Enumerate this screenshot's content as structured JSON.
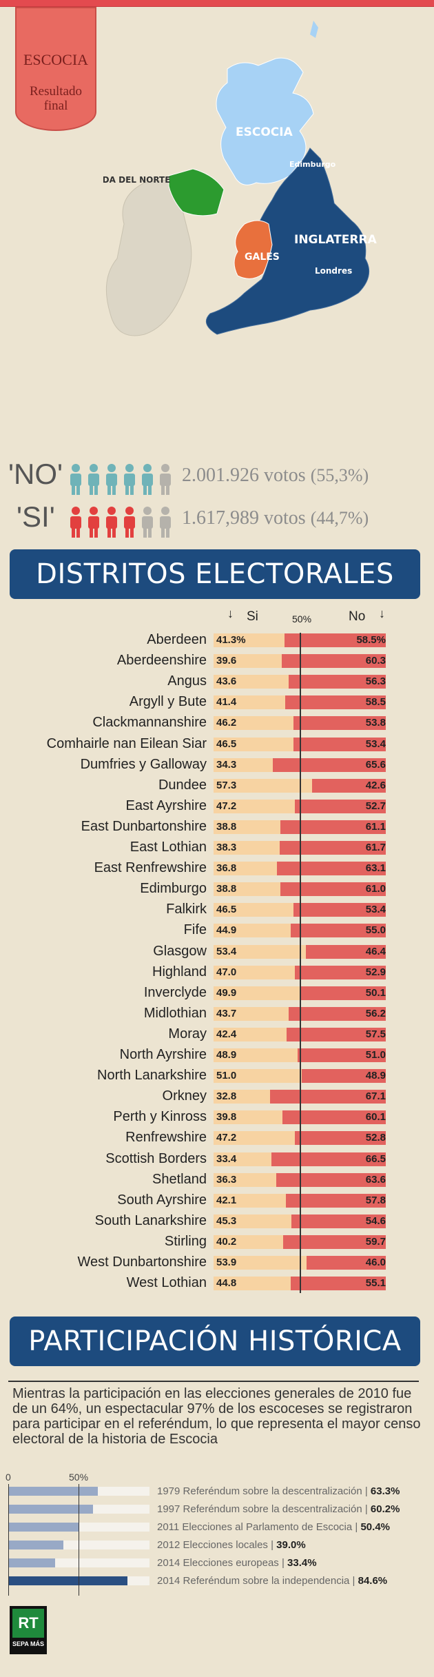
{
  "ribbon": {
    "line1": "ESCOCIA",
    "line2": "Resultado final"
  },
  "map": {
    "labels": {
      "scotland": "ESCOCIA",
      "edinburgh": "Edimburgo",
      "northern_ireland": "IRLANDA DEL NORTE",
      "england": "INGLATERRA",
      "wales": "GALES",
      "london": "Londres"
    },
    "colors": {
      "scotland": "#a7d2f5",
      "england": "#1d4b7e",
      "wales": "#e8703d",
      "northern_ireland": "#2c9b2f",
      "ireland": "#dcd6c6"
    }
  },
  "totals": {
    "no": {
      "tag": "'NO'",
      "votes": "2.001.926 votos",
      "pct": "(55,3%)",
      "color": "#6fb3b8",
      "figures_colored": 5,
      "figures_total": 6
    },
    "si": {
      "tag": "'SI'",
      "votes": "1.617,989 votos",
      "pct": "(44,7%)",
      "color": "#e2403f",
      "figures_colored": 4,
      "figures_total": 6
    }
  },
  "districts_title": "DISTRITOS ELECTORALES",
  "participation_title": "PARTICIPACIÓN HISTÓRICA",
  "intro_text": "Mientras la participación en las elecciones generales de 2010 fue de un 64%, un espectacular 97% de los escoceses se registraron para participar en el referéndum, lo que representa el mayor censo electoral de la historia de Escocia",
  "chart_data": [
    {
      "type": "bar",
      "title": "DISTRITOS ELECTORALES",
      "series_labels": {
        "si": "Si",
        "no": "No",
        "mid": "50%"
      },
      "categories": [
        "Aberdeen",
        "Aberdeenshire",
        "Angus",
        "Argyll y Bute",
        "Clackmannanshire",
        "Comhairle nan Eilean Siar",
        "Dumfries y Galloway",
        "Dundee",
        "East Ayrshire",
        "East Dunbartonshire",
        "East Lothian",
        "East Renfrewshire",
        "Edimburgo",
        "Falkirk",
        "Fife",
        "Glasgow",
        "Highland",
        "Inverclyde",
        "Midlothian",
        "Moray",
        "North Ayrshire",
        "North Lanarkshire",
        "Orkney",
        "Perth y Kinross",
        "Renfrewshire",
        "Scottish Borders",
        "Shetland",
        "South Ayrshire",
        "South Lanarkshire",
        "Stirling",
        "West Dunbartonshire",
        "West Lothian"
      ],
      "series": [
        {
          "name": "Si",
          "values": [
            41.3,
            39.6,
            43.6,
            41.4,
            46.2,
            46.5,
            34.3,
            57.3,
            47.2,
            38.8,
            38.3,
            36.8,
            38.8,
            46.5,
            44.9,
            53.4,
            47.0,
            49.9,
            43.7,
            42.4,
            48.9,
            51.0,
            32.8,
            39.8,
            47.2,
            33.4,
            36.3,
            42.1,
            45.3,
            40.2,
            53.9,
            44.8
          ],
          "display": [
            "41.3%",
            "39.6",
            "43.6",
            "41.4",
            "46.2",
            "46.5",
            "34.3",
            "57.3",
            "47.2",
            "38.8",
            "38.3",
            "36.8",
            "38.8",
            "46.5",
            "44.9",
            "53.4",
            "47.0",
            "49.9",
            "43.7",
            "42.4",
            "48.9",
            "51.0",
            "32.8",
            "39.8",
            "47.2",
            "33.4",
            "36.3",
            "42.1",
            "45.3",
            "40.2",
            "53.9",
            "44.8"
          ]
        },
        {
          "name": "No",
          "values": [
            58.5,
            60.3,
            56.3,
            58.5,
            53.8,
            53.4,
            65.6,
            42.6,
            52.7,
            61.1,
            61.7,
            63.1,
            61.0,
            53.4,
            55.0,
            46.4,
            52.9,
            50.1,
            56.2,
            57.5,
            51.0,
            48.9,
            67.1,
            60.1,
            52.8,
            66.5,
            63.6,
            57.8,
            54.6,
            59.7,
            46.0,
            55.1
          ],
          "display": [
            "58.5%",
            "60.3",
            "56.3",
            "58.5",
            "53.8",
            "53.4",
            "65.6",
            "42.6",
            "52.7",
            "61.1",
            "61.7",
            "63.1",
            "61.0",
            "53.4",
            "55.0",
            "46.4",
            "52.9",
            "50.1",
            "56.2",
            "57.5",
            "51.0",
            "48.9",
            "67.1",
            "60.1",
            "52.8",
            "66.5",
            "63.6",
            "57.8",
            "54.6",
            "59.7",
            "46.0",
            "55.1"
          ]
        }
      ],
      "colors": {
        "si": "#f7d3a2",
        "no": "#e2625e"
      },
      "xlim": [
        0,
        100
      ]
    },
    {
      "type": "bar",
      "title": "PARTICIPACIÓN HISTÓRICA",
      "axis_labels": [
        "0",
        "50%"
      ],
      "categories": [
        "1979 Referéndum sobre la descentralización",
        "1997 Referéndum sobre la descentralización",
        "2011 Elecciones al Parlamento de Escocia",
        "2012 Elecciones locales",
        "2014 Elecciones europeas",
        "2014 Referéndum sobre la independencia"
      ],
      "values": [
        63.3,
        60.2,
        50.4,
        39.0,
        33.4,
        84.6
      ],
      "display": [
        "63.3%",
        "60.2%",
        "50.4%",
        "39.0%",
        "33.4%",
        "84.6%"
      ],
      "highlight_index": 5,
      "colors": {
        "bar": "#98a9c6",
        "highlight": "#2a4f82"
      },
      "xlim": [
        0,
        100
      ]
    }
  ],
  "logo": {
    "brand": "RT",
    "tagline": "SEPA MÁS"
  }
}
